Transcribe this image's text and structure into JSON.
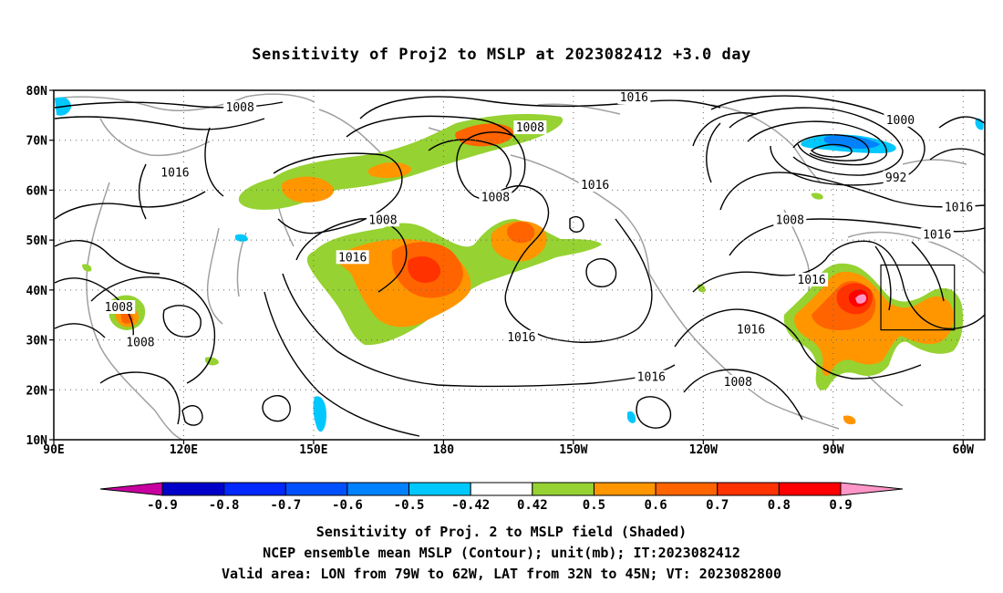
{
  "title": "Sensitivity of Proj2 to MSLP at 2023082412 +3.0 day",
  "map": {
    "lon_range": [
      90,
      305
    ],
    "lat_range": [
      10,
      80
    ],
    "lat_ticks": [
      {
        "value": 80,
        "label": "80N"
      },
      {
        "value": 70,
        "label": "70N"
      },
      {
        "value": 60,
        "label": "60N"
      },
      {
        "value": 50,
        "label": "50N"
      },
      {
        "value": 40,
        "label": "40N"
      },
      {
        "value": 30,
        "label": "30N"
      },
      {
        "value": 20,
        "label": "20N"
      },
      {
        "value": 10,
        "label": "10N"
      }
    ],
    "lon_ticks": [
      {
        "value": 90,
        "label": "90E"
      },
      {
        "value": 120,
        "label": "120E"
      },
      {
        "value": 150,
        "label": "150E"
      },
      {
        "value": 180,
        "label": "180"
      },
      {
        "value": 210,
        "label": "150W"
      },
      {
        "value": 240,
        "label": "120W"
      },
      {
        "value": 270,
        "label": "90W"
      },
      {
        "value": 300,
        "label": "60W"
      }
    ],
    "grid": "dotted",
    "valid_box": {
      "lon": [
        281,
        298
      ],
      "lat": [
        32,
        45
      ]
    },
    "contour_labels": [
      {
        "text": "1008",
        "lon": 133,
        "lat": 76.5
      },
      {
        "text": "1016",
        "lon": 224,
        "lat": 78.5
      },
      {
        "text": "1008",
        "lon": 200,
        "lat": 72.5
      },
      {
        "text": "1000",
        "lon": 285.5,
        "lat": 74
      },
      {
        "text": "992",
        "lon": 284.5,
        "lat": 62.5
      },
      {
        "text": "1016",
        "lon": 118,
        "lat": 63.5
      },
      {
        "text": "1008",
        "lon": 192,
        "lat": 58.5
      },
      {
        "text": "1016",
        "lon": 215,
        "lat": 61
      },
      {
        "text": "1008",
        "lon": 166,
        "lat": 54
      },
      {
        "text": "1016",
        "lon": 299,
        "lat": 56.5
      },
      {
        "text": "1008",
        "lon": 260,
        "lat": 54
      },
      {
        "text": "1016",
        "lon": 294,
        "lat": 51
      },
      {
        "text": "1016",
        "lon": 159,
        "lat": 46.5
      },
      {
        "text": "1016",
        "lon": 265,
        "lat": 42
      },
      {
        "text": "1008",
        "lon": 105,
        "lat": 36.5
      },
      {
        "text": "1016",
        "lon": 251,
        "lat": 32
      },
      {
        "text": "1008",
        "lon": 110,
        "lat": 29.5
      },
      {
        "text": "1016",
        "lon": 198,
        "lat": 30.5
      },
      {
        "text": "1016",
        "lon": 228,
        "lat": 22.5
      },
      {
        "text": "1008",
        "lon": 248,
        "lat": 21.5
      }
    ],
    "colors": {
      "contour": "#000000",
      "coast": "#a0a0a0",
      "frame": "#000000"
    }
  },
  "colorbar": {
    "labels": [
      "-0.9",
      "-0.8",
      "-0.7",
      "-0.6",
      "-0.5",
      "-0.42",
      "0.42",
      "0.5",
      "0.6",
      "0.7",
      "0.8",
      "0.9"
    ],
    "colors": [
      "#c800a0",
      "#0000c8",
      "#0028ff",
      "#0050ff",
      "#0082ff",
      "#00c8ff",
      "#ffffff",
      "#96d232",
      "#ff9600",
      "#ff6400",
      "#ff3200",
      "#ff0000",
      "#ff96c8"
    ]
  },
  "captions": {
    "line1": "Sensitivity of Proj. 2 to MSLP field (Shaded)",
    "line2": "NCEP ensemble mean MSLP (Contour); unit(mb); IT:2023082412",
    "line3": "Valid area: LON from 79W to 62W, LAT from 32N to 45N; VT: 2023082800"
  }
}
